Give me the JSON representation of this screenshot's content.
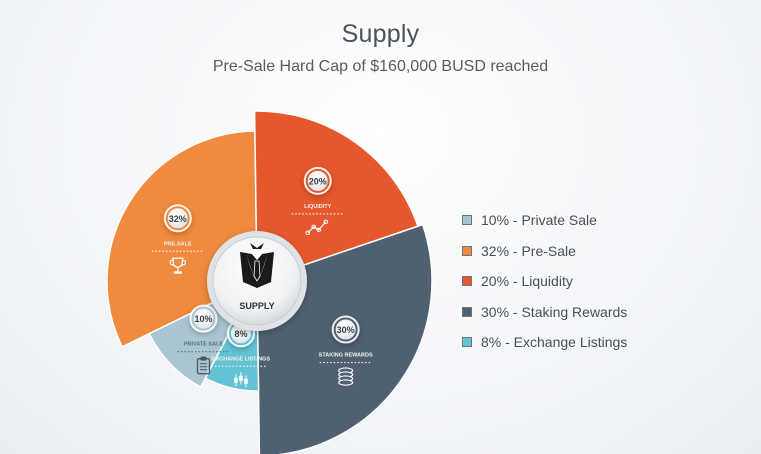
{
  "header": {
    "title": "Supply",
    "subtitle": "Pre-Sale Hard Cap of $160,000 BUSD reached"
  },
  "center": {
    "label": "SUPPLY",
    "icon": "suit-tie-logo-icon"
  },
  "chart_data": {
    "type": "pie",
    "title": "Supply",
    "subtitle": "Pre-Sale Hard Cap of $160,000 BUSD reached",
    "legend_position": "right",
    "slices": [
      {
        "name": "Private Sale",
        "value": 10,
        "percent_label": "10%",
        "slice_label": "PRIVATE SALE",
        "legend": "10% - Private Sale",
        "color": "#a9c6d0",
        "icon": "clipboard-icon"
      },
      {
        "name": "Pre-Sale",
        "value": 32,
        "percent_label": "32%",
        "slice_label": "PRE-SALE",
        "legend": "32% - Pre-Sale",
        "color": "#ef8a3e",
        "icon": "trophy-icon"
      },
      {
        "name": "Liquidity",
        "value": 20,
        "percent_label": "20%",
        "slice_label": "LIQUIDITY",
        "legend": "20% - Liquidity",
        "color": "#e5572c",
        "icon": "line-chart-icon"
      },
      {
        "name": "Staking Rewards",
        "value": 30,
        "percent_label": "30%",
        "slice_label": "STAKING REWARDS",
        "legend": "30% - Staking Rewards",
        "color": "#4f6070",
        "icon": "coin-stack-icon"
      },
      {
        "name": "Exchange Listings",
        "value": 8,
        "percent_label": "8%",
        "slice_label": "EXCHANGE LISTINGS",
        "legend": "8% - Exchange Listings",
        "color": "#63c2d3",
        "icon": "candlestick-icon"
      }
    ]
  }
}
